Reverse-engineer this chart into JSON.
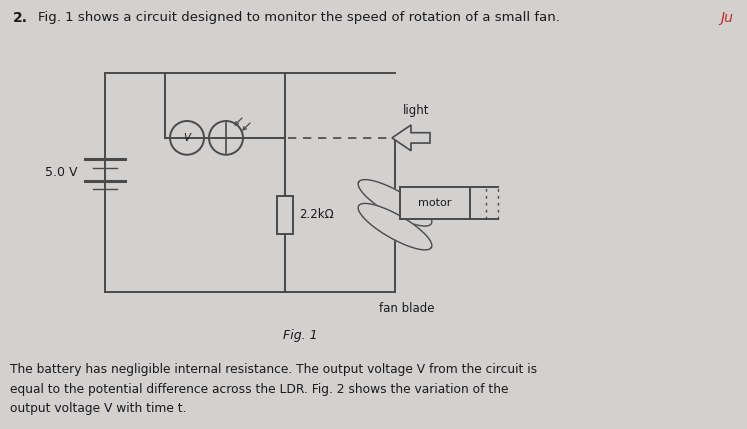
{
  "bg_color": "#d3d0d0",
  "title_number": "2.",
  "title_text": "Fig. 1 shows a circuit designed to monitor the speed of rotation of a small fan.",
  "red_text": "Ju",
  "battery_label": "5.0 V",
  "resistor_label": "2.2kΩ",
  "motor_label": "motor",
  "fan_label": "fan blade",
  "light_label": "light",
  "fig_label": "Fig. 1",
  "footer_text": "The battery has negligible internal resistance. The output voltage V from the circuit is\nequal to the potential difference across the LDR. Fig. 2 shows the variation of the\noutput voltage V with time t.",
  "line_color": "#4a4a4a",
  "text_color": "#1a1a1a",
  "ldr_arrow_color": "#4a4a4a"
}
